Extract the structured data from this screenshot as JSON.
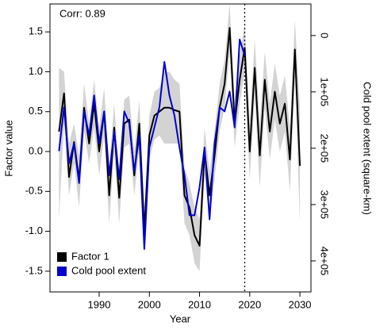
{
  "chart_data": {
    "type": "line",
    "annotation": "Corr: 0.89",
    "x_label": "Year",
    "y_label": "Factor value",
    "y2_label": "Cold pool extent (square-km)",
    "x": [
      1982,
      1983,
      1984,
      1985,
      1986,
      1987,
      1988,
      1989,
      1990,
      1991,
      1992,
      1993,
      1994,
      1995,
      1996,
      1997,
      1998,
      1999,
      2000,
      2001,
      2002,
      2003,
      2004,
      2005,
      2006,
      2007,
      2008,
      2009,
      2010,
      2011,
      2012,
      2013,
      2014,
      2015,
      2016,
      2017,
      2018,
      2019,
      2020,
      2021,
      2022,
      2023,
      2024,
      2025,
      2026,
      2027,
      2028,
      2029,
      2030
    ],
    "series": [
      {
        "name": "Factor 1",
        "color": "#000000",
        "values": [
          0.25,
          0.73,
          -0.32,
          0.12,
          -0.35,
          0.55,
          0.1,
          0.6,
          0.0,
          0.5,
          -0.55,
          0.3,
          -0.58,
          0.35,
          0.4,
          -0.3,
          0.35,
          -1.0,
          0.2,
          0.45,
          0.5,
          0.55,
          0.55,
          0.52,
          0.5,
          -0.55,
          -0.7,
          -1.05,
          -1.18,
          0.0,
          -0.55,
          -0.05,
          0.55,
          0.85,
          1.55,
          0.35,
          0.9,
          1.3,
          0.0,
          1.05,
          -0.05,
          0.9,
          0.25,
          0.75,
          0.35,
          0.6,
          -0.1,
          1.28,
          -0.18
        ]
      },
      {
        "name": "Cold pool extent",
        "color": "#0000cc",
        "axis": "y2",
        "values": [
          205000,
          127600,
          227000,
          191500,
          262000,
          134600,
          177300,
          106300,
          191500,
          134600,
          247900,
          170100,
          255000,
          134600,
          156000,
          240800,
          177300,
          378700,
          198600,
          163100,
          127600,
          46800,
          106300,
          141800,
          198600,
          247900,
          319000,
          319000,
          269400,
          198600,
          326200,
          191500,
          127600,
          134600,
          99300,
          163100,
          7000,
          35500,
          null,
          null,
          null,
          null,
          null,
          null,
          null,
          null,
          null,
          null,
          null
        ]
      }
    ],
    "band": {
      "color": "#d3d3d3",
      "lower": [
        -0.85,
        0.35,
        -0.55,
        -0.15,
        -0.7,
        0.25,
        -0.15,
        0.3,
        -0.3,
        0.2,
        -0.9,
        0.0,
        -0.9,
        0.05,
        0.1,
        -0.55,
        0.05,
        -1.3,
        -0.1,
        0.15,
        0.2,
        0.1,
        0.1,
        0.1,
        0.1,
        -0.9,
        -1.05,
        -1.4,
        -1.5,
        -0.3,
        -0.85,
        -0.35,
        0.25,
        0.55,
        1.25,
        0.05,
        0.6,
        1.0,
        -0.35,
        0.7,
        -0.45,
        0.55,
        -0.1,
        0.4,
        0.0,
        0.25,
        -0.5,
        0.9,
        -0.9
      ],
      "upper": [
        1.05,
        1.0,
        0.1,
        0.35,
        -0.05,
        0.85,
        0.35,
        0.9,
        0.3,
        0.8,
        -0.2,
        0.6,
        -0.25,
        0.65,
        0.7,
        0.0,
        0.65,
        -0.7,
        0.45,
        0.75,
        0.8,
        1.0,
        1.0,
        0.9,
        0.85,
        -0.2,
        -0.4,
        -0.7,
        -0.85,
        0.3,
        -0.25,
        0.25,
        0.85,
        1.15,
        1.85,
        0.65,
        1.2,
        1.6,
        0.35,
        1.4,
        0.35,
        1.25,
        0.6,
        1.1,
        0.7,
        0.95,
        0.3,
        1.65,
        0.55
      ]
    },
    "vline": 2019,
    "xlim": [
      1980.2,
      2032.2
    ],
    "xticks": [
      1990,
      2000,
      2010,
      2020,
      2030
    ],
    "ylim": [
      -1.76,
      1.85
    ],
    "yticks": [
      -1.5,
      {
        "value": -1.0,
        "label": "-1.0"
      },
      -0.5,
      {
        "value": 0.0,
        "label": "0.0"
      },
      0.5,
      {
        "value": 1.0,
        "label": "1.0"
      },
      1.5
    ],
    "y2lim": [
      -56000,
      455000
    ],
    "y2_inverted": true,
    "y2ticks": [
      0,
      {
        "value": 100000,
        "label": "1e+05"
      },
      {
        "value": 200000,
        "label": "2e+05"
      },
      {
        "value": 300000,
        "label": "3e+05"
      },
      {
        "value": 400000,
        "label": "4e+05"
      }
    ],
    "legend": "bottom-left"
  }
}
